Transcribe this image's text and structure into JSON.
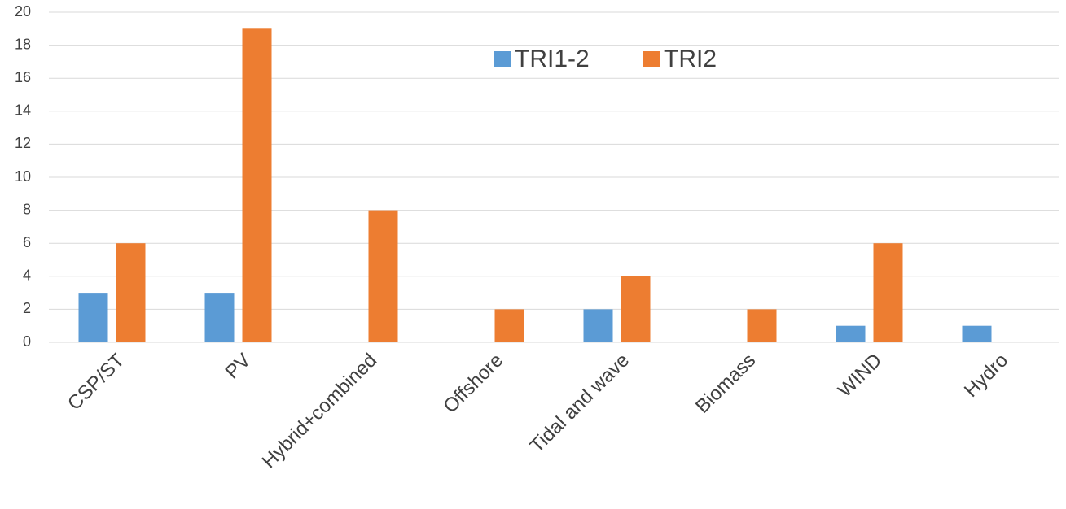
{
  "chart_data": {
    "type": "bar",
    "categories": [
      "CSP/ST",
      "PV",
      "Hybrid+combined",
      "Offshore",
      "Tidal and wave",
      "Biomass",
      "WIND",
      "Hydro"
    ],
    "series": [
      {
        "name": "TRI1-2",
        "color": "#5b9bd5",
        "values": [
          3,
          3,
          0,
          0,
          2,
          0,
          1,
          1
        ]
      },
      {
        "name": "TRI2",
        "color": "#ed7d31",
        "values": [
          6,
          19,
          8,
          2,
          4,
          2,
          6,
          0
        ]
      }
    ],
    "ylim": [
      0,
      20
    ],
    "yticks": [
      0,
      2,
      4,
      6,
      8,
      10,
      12,
      14,
      16,
      18,
      20
    ],
    "grid": true,
    "legend": "top"
  }
}
